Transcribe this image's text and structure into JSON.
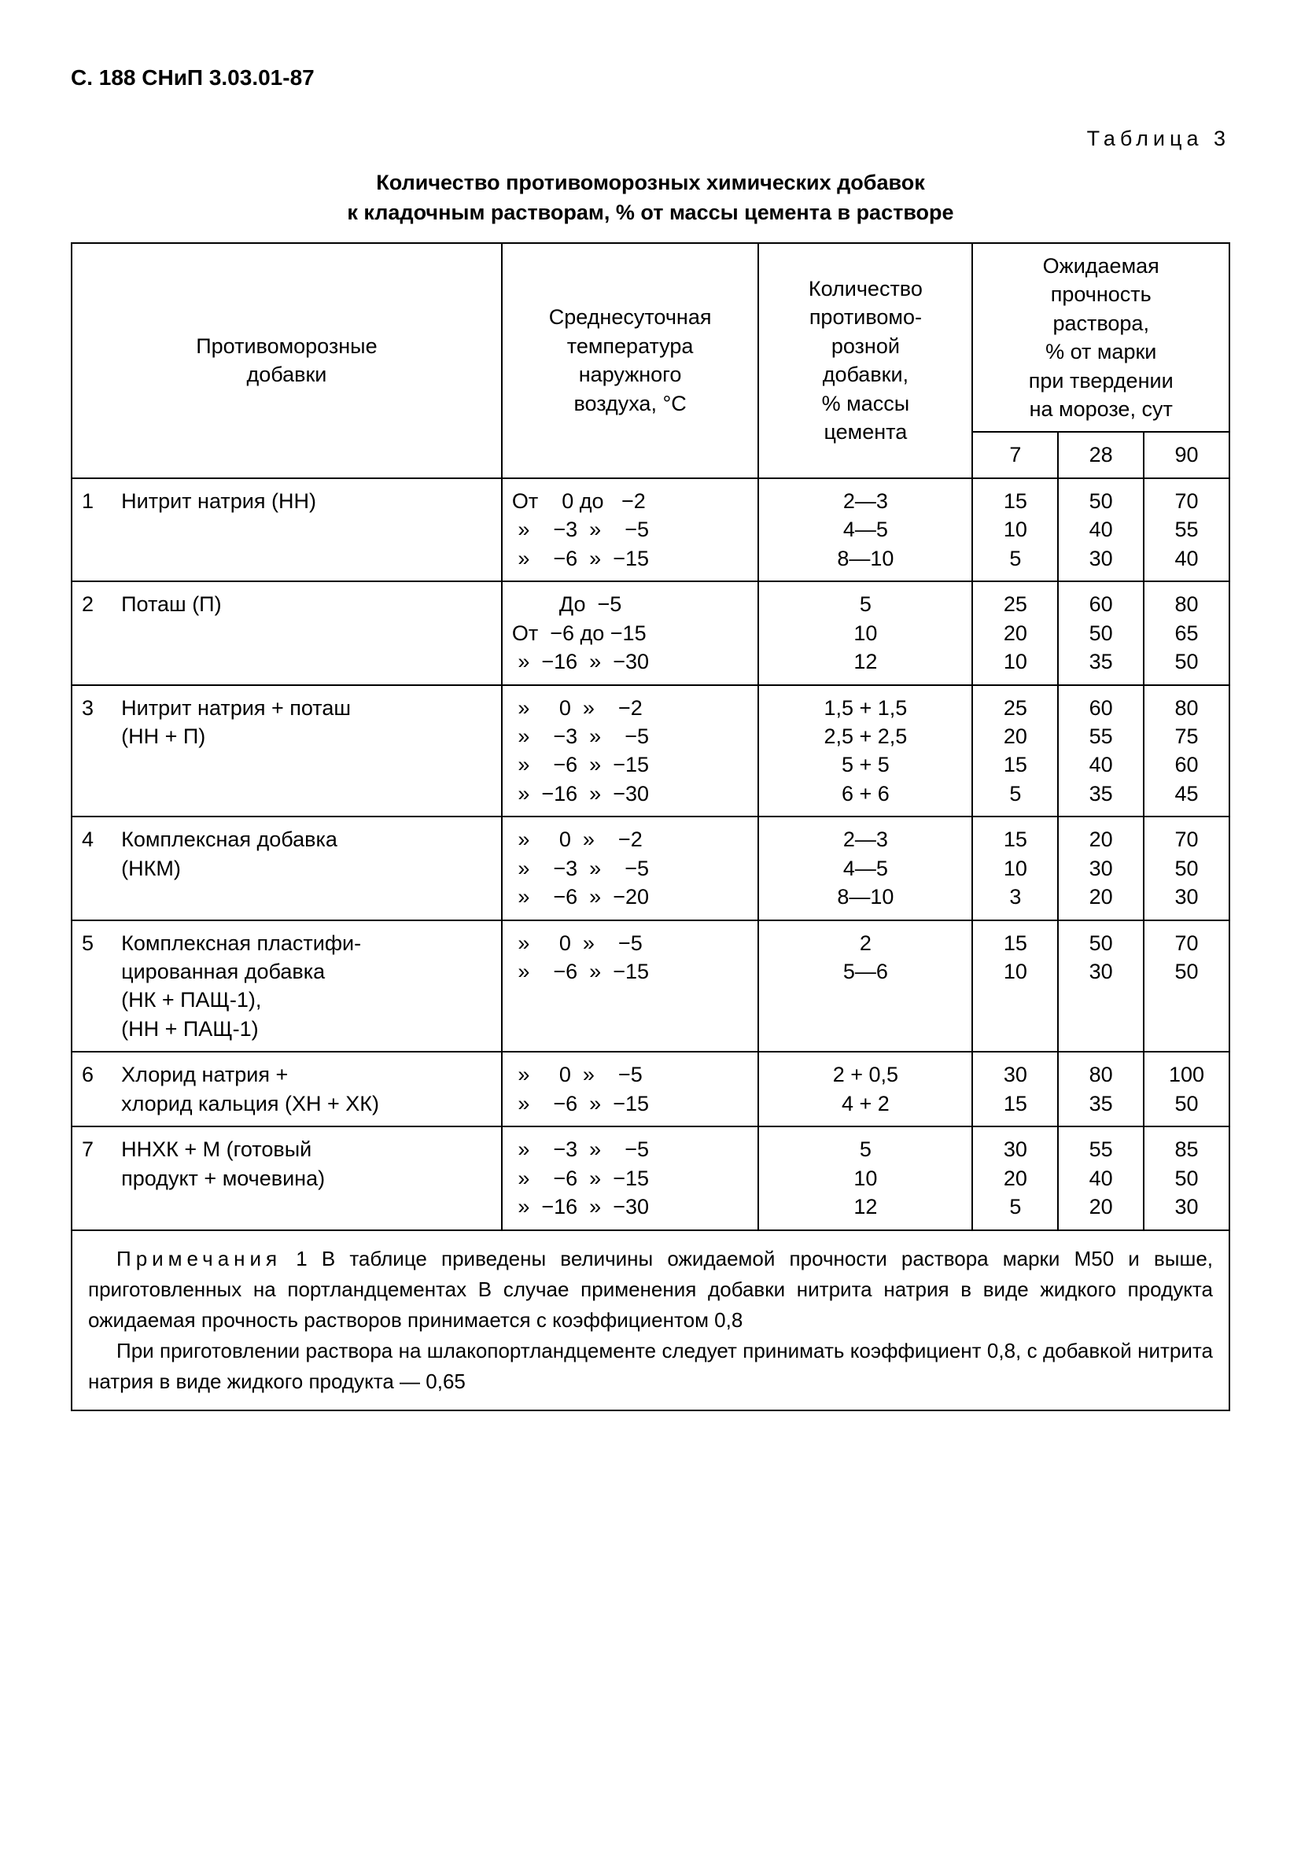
{
  "header": "С. 188 СНиП 3.03.01-87",
  "tableLabel": "Таблица 3",
  "caption": "Количество противоморозных химических добавок\nк кладочным растворам, % от массы цемента в растворе",
  "columns": {
    "additive": "Противоморозные\nдобавки",
    "temperature": "Среднесуточная\nтемпература\nнаружного\nвоздуха, °С",
    "amount": "Количество\nпротивомо-\nрозной\nдобавки,\n% массы\nцемента",
    "strengthHeader": "Ожидаемая\nпрочность\nраствора,\n% от марки\nпри твердении\nна морозе, сут",
    "days": [
      "7",
      "28",
      "90"
    ]
  },
  "rows": [
    {
      "num": "1",
      "name": "Нитрит натрия (НН)",
      "temp": "От    0 до   −2\n »    −3  »    −5\n »    −6  »  −15",
      "amount": "2—3\n4—5\n8—10",
      "d7": "15\n10\n5",
      "d28": "50\n40\n30",
      "d90": "70\n55\n40"
    },
    {
      "num": "2",
      "name": "Поташ (П)",
      "temp": "        До  −5\nОт  −6 до −15\n »  −16  »  −30",
      "amount": "5\n10\n12",
      "d7": "25\n20\n10",
      "d28": "60\n50\n35",
      "d90": "80\n65\n50"
    },
    {
      "num": "3",
      "name": "Нитрит натрия + поташ\n(НН + П)",
      "temp": " »     0  »    −2\n »    −3  »    −5\n »    −6  »  −15\n »  −16  »  −30",
      "amount": "1,5 + 1,5\n2,5 + 2,5\n5 + 5\n6 + 6",
      "d7": "25\n20\n15\n5",
      "d28": "60\n55\n40\n35",
      "d90": "80\n75\n60\n45"
    },
    {
      "num": "4",
      "name": "Комплексная добавка\n(НКМ)",
      "temp": " »     0  »    −2\n »    −3  »    −5\n »    −6  »  −20",
      "amount": "2—3\n4—5\n8—10",
      "d7": "15\n10\n3",
      "d28": "20\n30\n20",
      "d90": "70\n50\n30"
    },
    {
      "num": "5",
      "name": "Комплексная пластифи-\nцированная добавка\n(НК + ПАЩ-1),\n(НН + ПАЩ-1)",
      "temp": " »     0  »    −5\n »    −6  »  −15",
      "amount": "2\n5—6",
      "d7": "15\n10",
      "d28": "50\n30",
      "d90": "70\n50"
    },
    {
      "num": "6",
      "name": "Хлорид натрия +\nхлорид кальция (ХН + ХК)",
      "temp": " »     0  »    −5\n »    −6  »  −15",
      "amount": "2 + 0,5\n4 + 2",
      "d7": "30\n15",
      "d28": "80\n35",
      "d90": "100\n50"
    },
    {
      "num": "7",
      "name": "ННХК + М (готовый\nпродукт + мочевина)",
      "temp": " »    −3  »    −5\n »    −6  »  −15\n »  −16  »  −30",
      "amount": "5\n10\n12",
      "d7": "30\n20\n5",
      "d28": "55\n40\n20",
      "d90": "85\n50\n30"
    }
  ],
  "notes": {
    "lead": "Примечания",
    "text1": " 1 В таблице приведены величины ожидаемой прочности раствора марки М50 и выше, приготовленных на портландцементах В случае применения добавки нитрита натрия в виде жидкого продукта ожидаемая прочность растворов принимается с коэффициентом 0,8",
    "text2": "При приготовлении раствора на шлакопортландцементе следует принимать коэффициент 0,8, с добавкой нитрита натрия в виде жидкого продукта — 0,65"
  }
}
